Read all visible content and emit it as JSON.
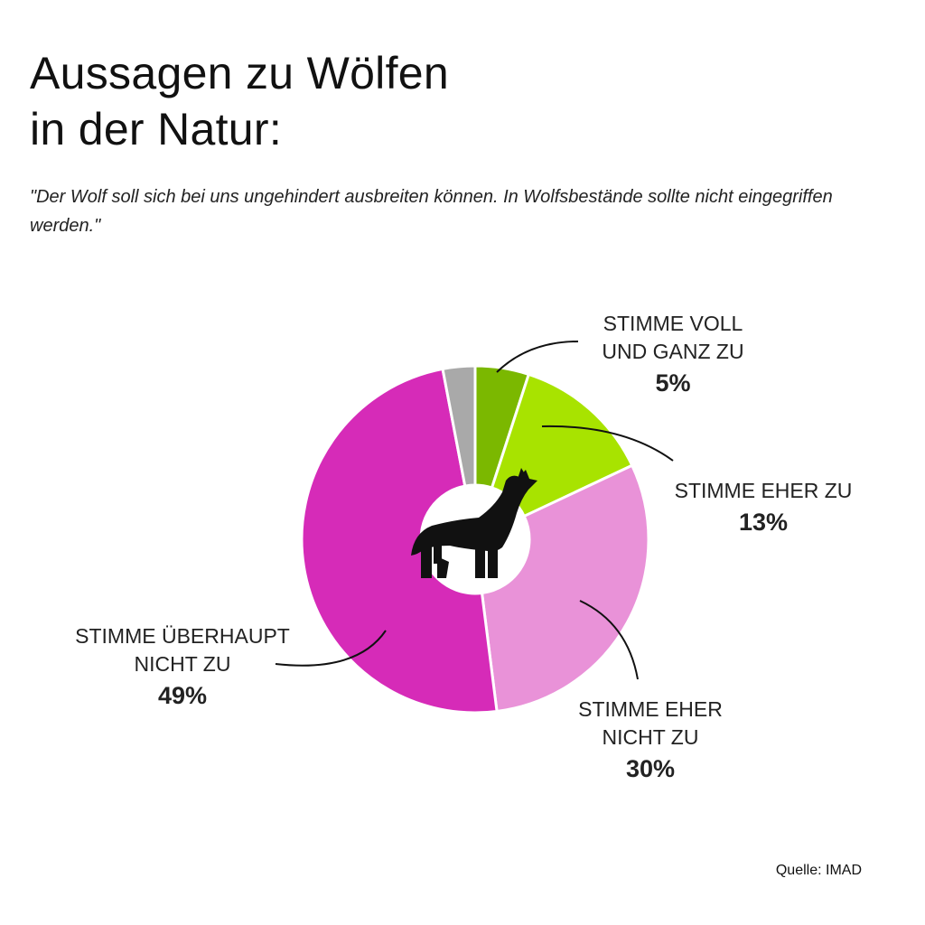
{
  "title_line1": "Aussagen zu Wölfen",
  "title_line2": "in der Natur:",
  "subtitle": "\"Der Wolf soll sich bei uns ungehindert ausbreiten können. In Wolfsbestände sollte nicht eingegriffen werden.\"",
  "source": "Quelle: IMAD",
  "center_icon": "howling-wolf-icon",
  "chart_data": {
    "type": "pie",
    "donut": true,
    "slices": [
      {
        "label_lines": [
          "STIMME VOLL",
          "UND GANZ ZU"
        ],
        "value_label": "5%",
        "value": 5,
        "color": "#7bb800"
      },
      {
        "label_lines": [
          "STIMME EHER ZU"
        ],
        "value_label": "13%",
        "value": 13,
        "color": "#a8e300"
      },
      {
        "label_lines": [
          "STIMME EHER",
          "NICHT ZU"
        ],
        "value_label": "30%",
        "value": 30,
        "color": "#e992d8"
      },
      {
        "label_lines": [
          "STIMME ÜBERHAUPT",
          "NICHT ZU"
        ],
        "value_label": "49%",
        "value": 49,
        "color": "#d62bb8"
      },
      {
        "label_lines": [],
        "value_label": "",
        "value": 3,
        "color": "#a9a9a9"
      }
    ]
  }
}
